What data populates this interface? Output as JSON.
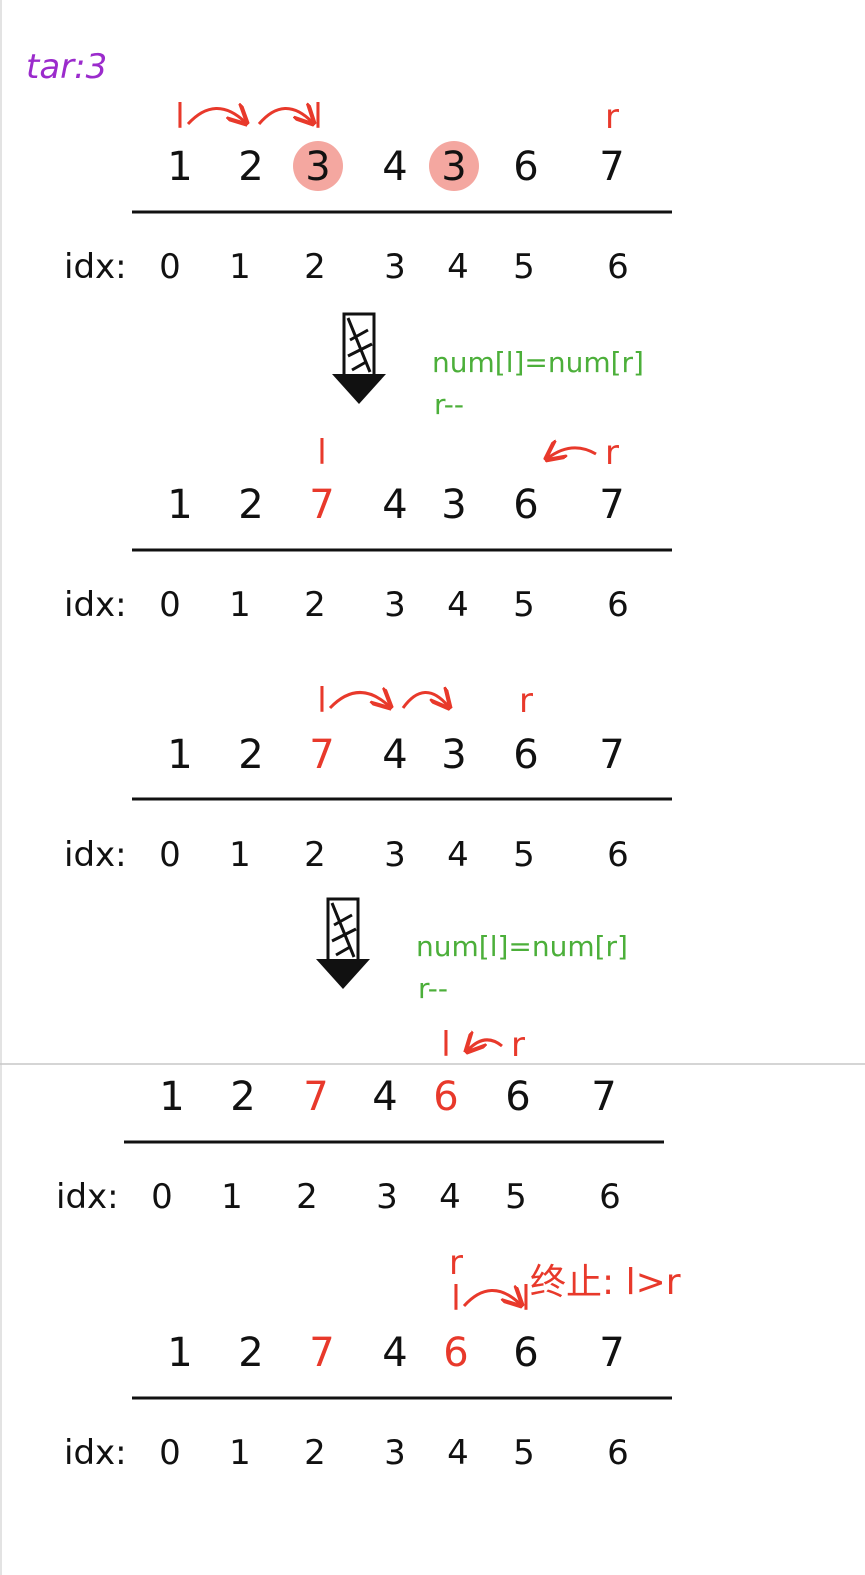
{
  "target_label": "tar:3",
  "index_label": "idx:",
  "colors": {
    "ink": "#111111",
    "red": "#e8392b",
    "purple": "#9b2bcc",
    "green": "#4caf3a",
    "highlight": "#f4a7a0",
    "separator": "#c7c7c7"
  },
  "arrow_note": {
    "line1": "num[l]=num[r]",
    "line2": "r--"
  },
  "stop_note": "终止: l>r",
  "steps": [
    {
      "values": [
        "1",
        "2",
        "3",
        "4",
        "3",
        "6",
        "7"
      ],
      "red_values": [
        false,
        false,
        false,
        false,
        false,
        false,
        false
      ],
      "highlighted": [
        false,
        false,
        true,
        false,
        true,
        false,
        false
      ],
      "indices": [
        "0",
        "1",
        "2",
        "3",
        "4",
        "5",
        "6"
      ],
      "l_pos": 0,
      "l_after": 2,
      "l_hops": [
        0,
        1,
        2
      ],
      "r_pos": 6
    },
    {
      "values": [
        "1",
        "2",
        "7",
        "4",
        "3",
        "6",
        "7"
      ],
      "red_values": [
        false,
        false,
        true,
        false,
        false,
        false,
        false
      ],
      "highlighted": [
        false,
        false,
        false,
        false,
        false,
        false,
        false
      ],
      "indices": [
        "0",
        "1",
        "2",
        "3",
        "4",
        "5",
        "6"
      ],
      "l_pos": 2,
      "r_pos": 6,
      "r_move_to": 5
    },
    {
      "values": [
        "1",
        "2",
        "7",
        "4",
        "3",
        "6",
        "7"
      ],
      "red_values": [
        false,
        false,
        true,
        false,
        false,
        false,
        false
      ],
      "highlighted": [
        false,
        false,
        false,
        false,
        false,
        false,
        false
      ],
      "indices": [
        "0",
        "1",
        "2",
        "3",
        "4",
        "5",
        "6"
      ],
      "l_pos": 2,
      "l_hops": [
        2,
        3,
        4
      ],
      "r_pos": 5
    },
    {
      "values": [
        "1",
        "2",
        "7",
        "4",
        "6",
        "6",
        "7"
      ],
      "red_values": [
        false,
        false,
        true,
        false,
        true,
        false,
        false
      ],
      "highlighted": [
        false,
        false,
        false,
        false,
        false,
        false,
        false
      ],
      "indices": [
        "0",
        "1",
        "2",
        "3",
        "4",
        "5",
        "6"
      ],
      "l_pos": 4,
      "r_pos": 5,
      "r_move_to": 4
    },
    {
      "values": [
        "1",
        "2",
        "7",
        "4",
        "6",
        "6",
        "7"
      ],
      "red_values": [
        false,
        false,
        true,
        false,
        true,
        false,
        false
      ],
      "highlighted": [
        false,
        false,
        false,
        false,
        false,
        false,
        false
      ],
      "indices": [
        "0",
        "1",
        "2",
        "3",
        "4",
        "5",
        "6"
      ],
      "l_pos": 4,
      "l_hops": [
        4,
        5
      ],
      "r_pos": 4
    }
  ],
  "pointer_labels": {
    "l": "l",
    "r": "r"
  }
}
